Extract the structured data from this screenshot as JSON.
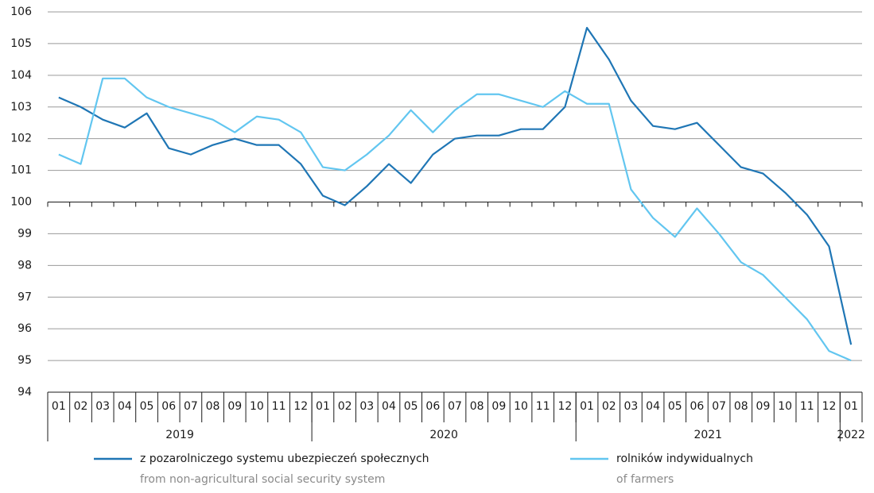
{
  "chart_data": {
    "type": "line",
    "categories": [
      "01",
      "02",
      "03",
      "04",
      "05",
      "06",
      "07",
      "08",
      "09",
      "10",
      "11",
      "12",
      "01",
      "02",
      "03",
      "04",
      "05",
      "06",
      "07",
      "08",
      "09",
      "10",
      "11",
      "12",
      "01",
      "02",
      "03",
      "04",
      "05",
      "06",
      "07",
      "08",
      "09",
      "10",
      "11",
      "12",
      "01"
    ],
    "year_groups": [
      {
        "label": "2019",
        "span": 12
      },
      {
        "label": "2020",
        "span": 12
      },
      {
        "label": "2021",
        "span": 12
      },
      {
        "label": "2022",
        "span": 1
      }
    ],
    "series": [
      {
        "name": "z pozarolniczego systemu ubezpieczeń społecznych",
        "name_en": "from non-agricultural social security system",
        "color": "#1f76b5",
        "values": [
          103.3,
          103.0,
          102.6,
          102.35,
          102.8,
          101.7,
          101.5,
          101.8,
          102.0,
          101.8,
          101.8,
          101.2,
          100.2,
          99.9,
          100.5,
          101.2,
          100.6,
          101.5,
          102.0,
          102.1,
          102.1,
          102.3,
          102.3,
          103.0,
          105.5,
          104.5,
          103.2,
          102.4,
          102.3,
          102.5,
          101.8,
          101.1,
          100.9,
          100.3,
          99.6,
          98.6,
          95.5
        ]
      },
      {
        "name": "rolników indywidualnych",
        "name_en": "of farmers",
        "color": "#62c6f0",
        "values": [
          101.5,
          101.2,
          103.9,
          103.9,
          103.3,
          103.0,
          102.8,
          102.6,
          102.2,
          102.7,
          102.6,
          102.2,
          101.1,
          101.0,
          101.5,
          102.1,
          102.9,
          102.2,
          102.9,
          103.4,
          103.4,
          103.2,
          103.0,
          103.5,
          103.1,
          103.1,
          100.4,
          99.5,
          98.9,
          99.8,
          99.0,
          98.1,
          97.7,
          97.0,
          96.3,
          95.3,
          95.0
        ]
      }
    ],
    "ylim": [
      94,
      106
    ],
    "yticks": [
      94,
      95,
      96,
      97,
      98,
      99,
      100,
      101,
      102,
      103,
      104,
      105,
      106
    ],
    "x_axis_crosses": 100,
    "grid": true
  }
}
